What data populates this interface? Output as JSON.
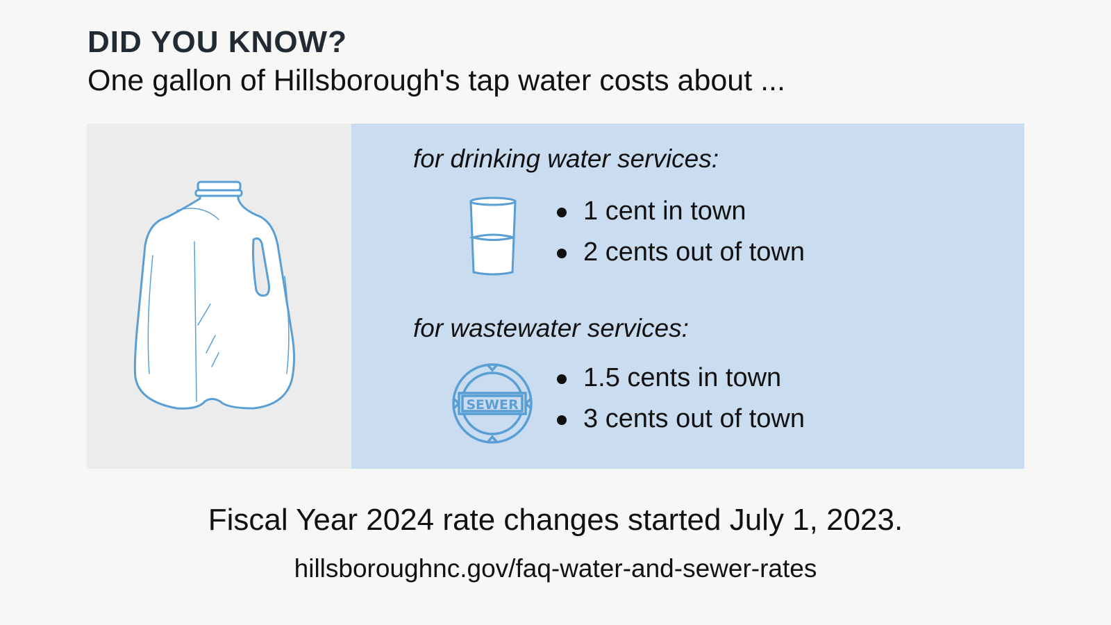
{
  "header": {
    "title": "DID YOU KNOW?",
    "subtitle": "One gallon of Hillsborough's tap water costs about ..."
  },
  "illustration": {
    "icon": "water-jug-icon"
  },
  "drinking_water": {
    "label": "for drinking water services:",
    "icon": "water-glass-icon",
    "items": [
      "1 cent in town",
      "2 cents out of town"
    ]
  },
  "wastewater": {
    "label": "for wastewater services:",
    "icon": "sewer-manhole-icon",
    "icon_text": "SEWER",
    "items": [
      "1.5 cents in town",
      "3 cents out of town"
    ]
  },
  "footer": {
    "note": "Fiscal Year 2024 rate changes started July 1, 2023.",
    "url": "hillsboroughnc.gov/faq-water-and-sewer-rates"
  },
  "colors": {
    "background": "#f7f7f6",
    "left_panel": "#ececec",
    "right_panel": "#c9dcf0",
    "icon_stroke": "#5a9fd4",
    "title": "#222a33"
  }
}
